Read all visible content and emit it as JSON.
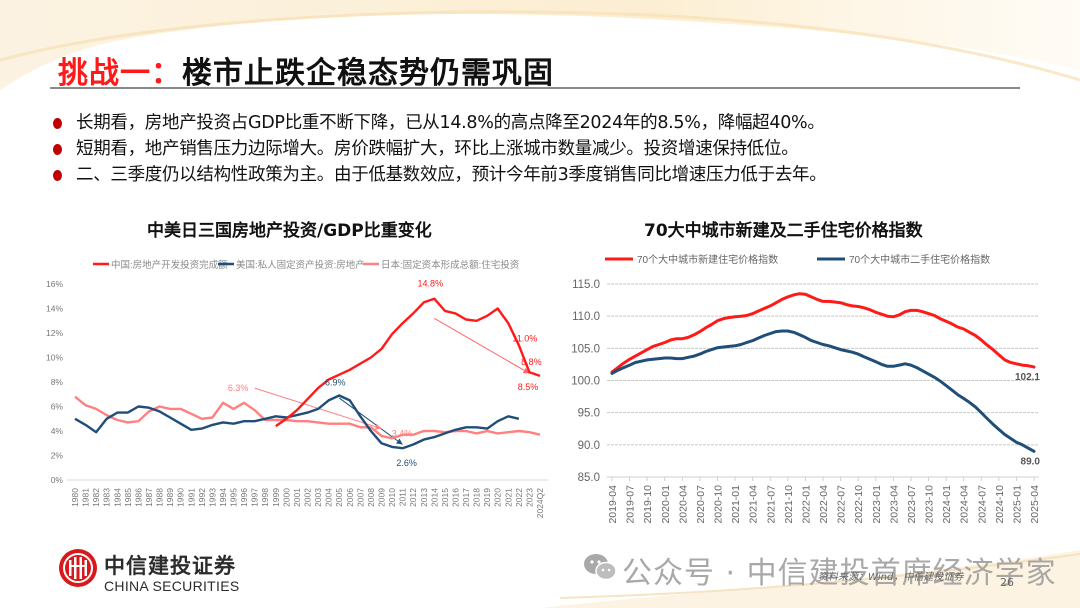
{
  "slide": {
    "title_prefix": "挑战一：",
    "title_main": "楼市止跌企稳态势仍需巩固",
    "bullets": [
      "长期看，房地产投资占GDP比重不断下降，已从14.8%的高点降至2024年的8.5%，降幅超40%。",
      "短期看，地产销售压力边际增大。房价跌幅扩大，环比上涨城市数量减少。投资增速保持低位。",
      "二、三季度仍以结构性政策为主。由于低基数效应，预计今年前3季度销售同比增速压力低于去年。"
    ],
    "bullet_color": "#c00000",
    "title_accent": "#ff1a1a"
  },
  "footer": {
    "logo_cn": "中信建投证券",
    "logo_en": "CHINA SECURITIES",
    "watermark": "公众号 · 中信建投首席经济学家",
    "source": "资料来源：Wind，中信建投证券",
    "page_number": "26"
  },
  "chart_data": [
    {
      "type": "line",
      "title": "中美日三国房地产投资/GDP比重变化",
      "xlabel": "",
      "ylabel": "",
      "ylim": [
        0,
        16
      ],
      "y_ticks": [
        "0%",
        "2%",
        "4%",
        "6%",
        "8%",
        "10%",
        "12%",
        "14%",
        "16%"
      ],
      "y_tick_values": [
        0,
        2,
        4,
        6,
        8,
        10,
        12,
        14,
        16
      ],
      "grid": false,
      "legend_position": "top",
      "x": [
        "1980",
        "1981",
        "1982",
        "1983",
        "1984",
        "1985",
        "1986",
        "1987",
        "1988",
        "1989",
        "1990",
        "1991",
        "1992",
        "1993",
        "1994",
        "1995",
        "1996",
        "1997",
        "1998",
        "1999",
        "2000",
        "2001",
        "2002",
        "2003",
        "2004",
        "2005",
        "2006",
        "2007",
        "2008",
        "2009",
        "2010",
        "2011",
        "2012",
        "2013",
        "2014",
        "2015",
        "2016",
        "2017",
        "2018",
        "2019",
        "2020",
        "2021",
        "2022",
        "2023",
        "2024Q2"
      ],
      "series": [
        {
          "name": "中国:房地产开发投资完成额",
          "color": "#ff1a1a",
          "values": [
            null,
            null,
            null,
            null,
            null,
            null,
            null,
            null,
            null,
            null,
            null,
            null,
            null,
            null,
            null,
            null,
            null,
            null,
            null,
            4.4,
            5.0,
            5.7,
            6.6,
            7.5,
            8.2,
            8.6,
            9.0,
            9.5,
            10.0,
            10.7,
            11.9,
            12.8,
            13.6,
            14.5,
            14.8,
            13.8,
            13.6,
            13.1,
            13.0,
            13.4,
            14.0,
            12.8,
            11.0,
            8.8,
            8.5
          ]
        },
        {
          "name": "美国:私人固定资产投资:房地产",
          "color": "#1f4e79",
          "values": [
            5.0,
            4.5,
            3.9,
            5.0,
            5.5,
            5.5,
            6.0,
            5.9,
            5.6,
            5.1,
            4.6,
            4.1,
            4.2,
            4.5,
            4.7,
            4.6,
            4.8,
            4.8,
            5.0,
            5.2,
            5.1,
            5.3,
            5.5,
            5.8,
            6.5,
            6.9,
            6.5,
            5.2,
            4.0,
            3.0,
            2.7,
            2.6,
            2.9,
            3.3,
            3.5,
            3.8,
            4.1,
            4.3,
            4.3,
            4.2,
            4.8,
            5.2,
            5.0,
            null,
            null
          ]
        },
        {
          "name": "日本:固定资本形成总额:住宅投资",
          "color": "#ff8080",
          "values": [
            6.8,
            6.1,
            5.8,
            5.3,
            4.9,
            4.7,
            4.8,
            5.6,
            6.0,
            5.8,
            5.8,
            5.4,
            5.0,
            5.1,
            6.3,
            5.8,
            6.3,
            5.7,
            4.9,
            4.9,
            4.9,
            4.8,
            4.8,
            4.7,
            4.6,
            4.6,
            4.6,
            4.3,
            4.3,
            3.6,
            3.4,
            3.7,
            3.7,
            4.0,
            4.0,
            3.9,
            4.0,
            4.0,
            3.8,
            4.0,
            3.8,
            3.9,
            4.0,
            3.9,
            3.7
          ]
        }
      ],
      "annotations": [
        {
          "text": "14.8%",
          "series": 0,
          "x": "2014",
          "color": "#ff1a1a"
        },
        {
          "text": "11.0%",
          "series": 0,
          "x": "2022",
          "color": "#ff1a1a"
        },
        {
          "text": "8.8%",
          "series": 0,
          "x": "2023",
          "color": "#ff1a1a"
        },
        {
          "text": "8.5%",
          "series": 0,
          "x": "2024Q2",
          "color": "#ff1a1a"
        },
        {
          "text": "6.9%",
          "series": 1,
          "x": "2005",
          "color": "#1f4e79"
        },
        {
          "text": "2.6%",
          "series": 1,
          "x": "2011",
          "color": "#1f4e79"
        },
        {
          "text": "6.3%",
          "series": 2,
          "x": "1996",
          "color": "#ff8080"
        },
        {
          "text": "3.4%",
          "series": 2,
          "x": "2010",
          "color": "#ff8080"
        }
      ],
      "arrows": [
        {
          "from_x": "2014",
          "from_y": 13.2,
          "to_x": "2023",
          "to_y": 8.7,
          "color": "#ff6666"
        },
        {
          "from_x": "2005",
          "from_y": 6.7,
          "to_x": "2011",
          "to_y": 2.9,
          "color": "#1f4e79"
        },
        {
          "from_x": "1997",
          "from_y": 7.5,
          "to_x": "2009",
          "to_y": 4.2,
          "color": "#ff8080"
        }
      ]
    },
    {
      "type": "line",
      "title": "70大中城市新建及二手住宅价格指数",
      "xlabel": "",
      "ylabel": "",
      "ylim": [
        85,
        115
      ],
      "y_ticks": [
        "85.0",
        "90.0",
        "95.0",
        "100.0",
        "105.0",
        "110.0",
        "115.0"
      ],
      "y_tick_values": [
        85,
        90,
        95,
        100,
        105,
        110,
        115
      ],
      "grid": true,
      "legend_position": "top",
      "x_ticks": [
        "2019-04",
        "2019-07",
        "2019-10",
        "2020-01",
        "2020-04",
        "2020-07",
        "2020-10",
        "2021-01",
        "2021-04",
        "2021-07",
        "2021-10",
        "2022-01",
        "2022-04",
        "2022-07",
        "2022-10",
        "2023-01",
        "2023-04",
        "2023-07",
        "2023-10",
        "2024-01",
        "2024-04",
        "2024-07",
        "2024-10",
        "2025-01",
        "2025-04"
      ],
      "series": [
        {
          "name": "70个大中城市新建住宅价格指数",
          "color": "#ff1a1a",
          "values": [
            101.3,
            102.0,
            102.7,
            103.3,
            103.8,
            104.3,
            104.8,
            105.3,
            105.6,
            105.9,
            106.3,
            106.5,
            106.5,
            106.7,
            107.1,
            107.6,
            108.2,
            108.7,
            109.3,
            109.6,
            109.8,
            109.9,
            110.0,
            110.1,
            110.4,
            110.8,
            111.2,
            111.6,
            112.1,
            112.6,
            113.0,
            113.3,
            113.5,
            113.4,
            113.0,
            112.6,
            112.3,
            112.3,
            112.2,
            112.1,
            111.8,
            111.6,
            111.5,
            111.3,
            111.0,
            110.6,
            110.3,
            110.0,
            109.9,
            110.2,
            110.7,
            110.9,
            110.9,
            110.7,
            110.4,
            110.1,
            109.6,
            109.2,
            108.8,
            108.3,
            108.0,
            107.5,
            107.0,
            106.3,
            105.5,
            104.8,
            104.0,
            103.2,
            102.8,
            102.6,
            102.4,
            102.3,
            102.1
          ]
        },
        {
          "name": "70个大中城市二手住宅价格指数",
          "color": "#1f4e79",
          "values": [
            101.1,
            101.6,
            102.0,
            102.4,
            102.8,
            103.0,
            103.2,
            103.3,
            103.4,
            103.5,
            103.5,
            103.4,
            103.4,
            103.6,
            103.8,
            104.1,
            104.5,
            104.8,
            105.1,
            105.2,
            105.3,
            105.4,
            105.6,
            105.9,
            106.2,
            106.6,
            107.0,
            107.3,
            107.6,
            107.7,
            107.7,
            107.5,
            107.1,
            106.7,
            106.2,
            105.9,
            105.6,
            105.4,
            105.1,
            104.8,
            104.6,
            104.4,
            104.1,
            103.7,
            103.3,
            102.9,
            102.5,
            102.2,
            102.2,
            102.4,
            102.6,
            102.4,
            102.0,
            101.5,
            101.0,
            100.5,
            99.9,
            99.2,
            98.5,
            97.8,
            97.2,
            96.6,
            95.9,
            95.0,
            94.1,
            93.2,
            92.4,
            91.6,
            91.0,
            90.4,
            90.0,
            89.5,
            89.0
          ]
        }
      ],
      "annotations": [
        {
          "text": "102.1",
          "series": 0,
          "x": "2025-04",
          "color": "#555555"
        },
        {
          "text": "89.0",
          "series": 1,
          "x": "2025-04",
          "color": "#555555"
        }
      ]
    }
  ]
}
